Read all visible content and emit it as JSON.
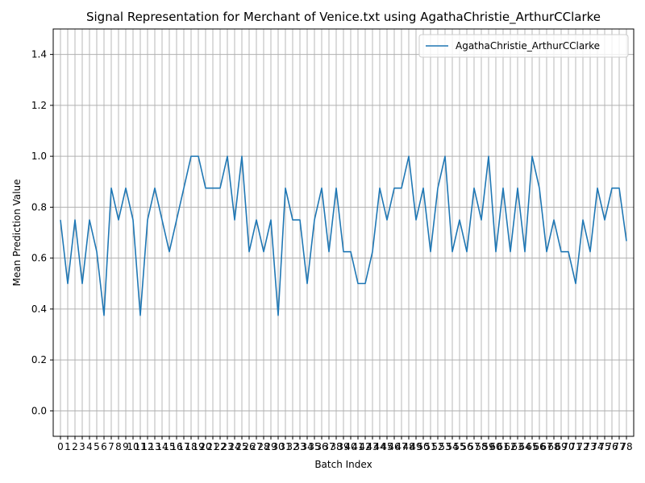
{
  "chart_data": {
    "type": "line",
    "title": "Signal Representation for Merchant of Venice.txt using AgathaChristie_ArthurCClarke",
    "xlabel": "Batch Index",
    "ylabel": "Mean Prediction Value",
    "xlim": [
      -1,
      79
    ],
    "ylim": [
      -0.1,
      1.5
    ],
    "grid": true,
    "legend_position": "upper right",
    "yticks": [
      0.0,
      0.2,
      0.4,
      0.6,
      0.8,
      1.0,
      1.2,
      1.4
    ],
    "ytick_labels": [
      "0.0",
      "0.2",
      "0.4",
      "0.6",
      "0.8",
      "1.0",
      "1.2",
      "1.4"
    ],
    "x": [
      0,
      1,
      2,
      3,
      4,
      5,
      6,
      7,
      8,
      9,
      10,
      11,
      12,
      13,
      14,
      15,
      16,
      17,
      18,
      19,
      20,
      21,
      22,
      23,
      24,
      25,
      26,
      27,
      28,
      29,
      30,
      31,
      32,
      33,
      34,
      35,
      36,
      37,
      38,
      39,
      40,
      41,
      42,
      43,
      44,
      45,
      46,
      47,
      48,
      49,
      50,
      51,
      52,
      53,
      54,
      55,
      56,
      57,
      58,
      59,
      60,
      61,
      62,
      63,
      64,
      65,
      66,
      67,
      68,
      69,
      70,
      71,
      72,
      73,
      74,
      75,
      76,
      77,
      78
    ],
    "series": [
      {
        "name": "AgathaChristie_ArthurCClarke",
        "color": "#1f77b4",
        "values": [
          0.75,
          0.5,
          0.75,
          0.5,
          0.75,
          0.625,
          0.375,
          0.875,
          0.75,
          0.875,
          0.75,
          0.375,
          0.75,
          0.875,
          0.75,
          0.625,
          0.75,
          0.875,
          1.0,
          1.0,
          0.875,
          0.875,
          0.875,
          1.0,
          0.75,
          1.0,
          0.625,
          0.75,
          0.625,
          0.75,
          0.375,
          0.875,
          0.75,
          0.75,
          0.5,
          0.75,
          0.875,
          0.625,
          0.875,
          0.625,
          0.625,
          0.5,
          0.5,
          0.625,
          0.875,
          0.75,
          0.875,
          0.875,
          1.0,
          0.75,
          0.875,
          0.625,
          0.875,
          1.0,
          0.625,
          0.75,
          0.625,
          0.875,
          0.75,
          1.0,
          0.625,
          0.875,
          0.625,
          0.875,
          0.625,
          1.0,
          0.875,
          0.625,
          0.75,
          0.625,
          0.625,
          0.5,
          0.75,
          0.625,
          0.875,
          0.75,
          0.875,
          0.875,
          0.667
        ]
      }
    ]
  }
}
